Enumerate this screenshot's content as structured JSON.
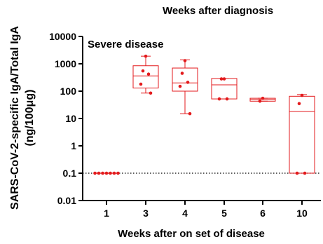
{
  "chart_data": {
    "type": "box",
    "title": "Weeks after diagnosis",
    "annotation": "Severe disease",
    "xlabel": "Weeks after on set of disease",
    "ylabel_line1": "SARS-CoV-2-specific IgA/Total IgA",
    "ylabel_line2": "(ng/100μg)",
    "y_scale": "log",
    "ylim": [
      0.01,
      10000
    ],
    "y_ticks": [
      "0.01",
      "0.1",
      "1",
      "10",
      "100",
      "1000",
      "10000"
    ],
    "categories": [
      "1",
      "3",
      "4",
      "5",
      "6",
      "10"
    ],
    "reference_line": 0.1,
    "color": "#e31a1c",
    "boxes": [
      {
        "category": "1",
        "min": 0.1,
        "q1": 0.1,
        "median": 0.1,
        "q3": 0.1,
        "max": 0.1,
        "points": [
          0.1,
          0.1,
          0.1,
          0.1,
          0.1,
          0.1,
          0.1
        ]
      },
      {
        "category": "3",
        "min": 85,
        "q1": 130,
        "median": 360,
        "q3": 850,
        "max": 1900,
        "points": [
          1900,
          550,
          420,
          180,
          85
        ]
      },
      {
        "category": "4",
        "min": 15,
        "q1": 100,
        "median": 200,
        "q3": 700,
        "max": 1400,
        "points": [
          1300,
          450,
          210,
          150,
          15
        ]
      },
      {
        "category": "5",
        "min": 52,
        "q1": 52,
        "median": 170,
        "q3": 290,
        "max": 290,
        "points": [
          280,
          280,
          52,
          52
        ]
      },
      {
        "category": "6",
        "min": 43,
        "q1": 43,
        "median": 50,
        "q3": 55,
        "max": 55,
        "points": [
          55,
          43
        ]
      },
      {
        "category": "10",
        "min": 0.1,
        "q1": 0.1,
        "median": 18,
        "q3": 65,
        "max": 75,
        "points": [
          70,
          35,
          0.1,
          0.1
        ]
      }
    ]
  }
}
